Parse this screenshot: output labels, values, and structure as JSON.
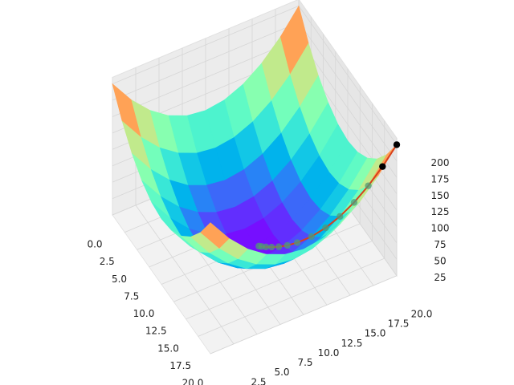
{
  "chart_data": {
    "type": "surface3d",
    "colormap": "rainbow",
    "xlim": [
      0,
      20
    ],
    "ylim": [
      0,
      20
    ],
    "zlim": [
      0,
      210
    ],
    "xticks": [
      {
        "value": 0,
        "label": "0.0"
      },
      2.5,
      {
        "value": 5,
        "label": "5.0"
      },
      7.5,
      {
        "value": 10,
        "label": "10.0"
      },
      12.5,
      {
        "value": 15,
        "label": "15.0"
      },
      17.5,
      {
        "value": 20,
        "label": "20.0"
      }
    ],
    "yticks": [
      2.5,
      {
        "value": 5,
        "label": "5.0"
      },
      7.5,
      {
        "value": 10,
        "label": "10.0"
      },
      12.5,
      {
        "value": 15,
        "label": "15.0"
      },
      17.5,
      {
        "value": 20,
        "label": "20.0"
      }
    ],
    "zticks": [
      25,
      50,
      75,
      100,
      125,
      150,
      175,
      200
    ],
    "grid": true,
    "surface": {
      "x": [
        0,
        2,
        4,
        6,
        8,
        10,
        12,
        14,
        16,
        18,
        20
      ],
      "y": [
        0,
        2,
        4,
        6,
        8,
        10,
        12,
        14,
        16,
        18,
        20
      ],
      "z": [
        [
          200,
          164,
          136,
          116,
          104,
          100,
          104,
          116,
          136,
          164,
          200
        ],
        [
          164,
          128,
          100,
          80,
          68,
          64,
          68,
          80,
          100,
          128,
          164
        ],
        [
          136,
          100,
          72,
          52,
          40,
          36,
          40,
          52,
          72,
          100,
          136
        ],
        [
          116,
          80,
          52,
          32,
          20,
          16,
          20,
          32,
          52,
          80,
          116
        ],
        [
          104,
          68,
          40,
          20,
          8,
          4,
          8,
          20,
          40,
          68,
          104
        ],
        [
          100,
          64,
          36,
          16,
          4,
          0,
          4,
          16,
          36,
          64,
          100
        ],
        [
          104,
          68,
          40,
          20,
          8,
          4,
          8,
          20,
          40,
          68,
          104
        ],
        [
          116,
          80,
          52,
          32,
          20,
          16,
          20,
          32,
          52,
          80,
          116
        ],
        [
          136,
          100,
          72,
          52,
          40,
          36,
          40,
          52,
          72,
          100,
          136
        ],
        [
          164,
          128,
          100,
          80,
          68,
          64,
          68,
          80,
          100,
          128,
          164
        ],
        [
          200,
          164,
          136,
          116,
          104,
          100,
          104,
          116,
          136,
          164,
          200
        ]
      ]
    },
    "path": {
      "x": [
        20,
        19,
        18,
        17,
        16,
        15,
        14,
        13,
        12.3,
        11.7,
        11.2,
        10.8,
        10.5,
        10.3
      ],
      "y": [
        20,
        19,
        18,
        17,
        16,
        15,
        14,
        13,
        12.3,
        11.7,
        11.2,
        10.8,
        10.5,
        10.3
      ],
      "z": [
        200,
        162,
        128,
        98,
        72,
        50,
        32,
        18,
        10.6,
        5.8,
        2.9,
        1.3,
        0.5,
        0.2
      ],
      "line_color": "#d8401c",
      "marker_color": "#4f9a78",
      "start_color": "#000000"
    }
  }
}
